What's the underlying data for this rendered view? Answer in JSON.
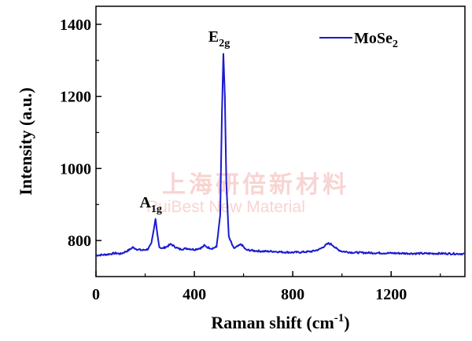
{
  "chart_data": {
    "type": "line",
    "xlabel_main": "Raman shift (cm",
    "xlabel_sup": "-1",
    "xlabel_end": ")",
    "ylabel": "Intensity (a.u.)",
    "xlim": [
      0,
      1500
    ],
    "ylim": [
      700,
      1450
    ],
    "xticks": [
      0,
      400,
      800,
      1200
    ],
    "yticks": [
      800,
      1000,
      1200,
      1400
    ],
    "legend_position": "top-right",
    "series": [
      {
        "name_main": "MoSe",
        "name_sub": "2",
        "color": "#1a1ad0",
        "x": [
          0,
          40,
          80,
          100,
          130,
          150,
          170,
          190,
          210,
          225,
          235,
          242,
          250,
          258,
          270,
          290,
          305,
          320,
          340,
          370,
          400,
          430,
          440,
          455,
          470,
          490,
          505,
          512,
          518,
          524,
          530,
          540,
          560,
          580,
          590,
          610,
          640,
          680,
          720,
          760,
          800,
          840,
          880,
          910,
          930,
          945,
          955,
          965,
          980,
          1000,
          1040,
          1100,
          1200,
          1300,
          1400,
          1500
        ],
        "y": [
          759,
          761,
          765,
          763,
          772,
          781,
          775,
          773,
          776,
          790,
          830,
          860,
          815,
          782,
          778,
          784,
          790,
          783,
          776,
          778,
          775,
          780,
          786,
          781,
          778,
          782,
          870,
          1150,
          1318,
          1200,
          960,
          810,
          778,
          785,
          790,
          774,
          772,
          770,
          770,
          768,
          767,
          768,
          770,
          776,
          785,
          792,
          790,
          786,
          776,
          770,
          767,
          766,
          765,
          764,
          764,
          763
        ]
      }
    ],
    "annotations": [
      {
        "main": "E",
        "sub": "2g",
        "x": 520,
        "y": 1330
      },
      {
        "main": "A",
        "sub": "1g",
        "x": 242,
        "y": 870
      }
    ]
  },
  "watermark": {
    "cn": "上海研倍新材料",
    "en": "RuiBest New Material"
  }
}
